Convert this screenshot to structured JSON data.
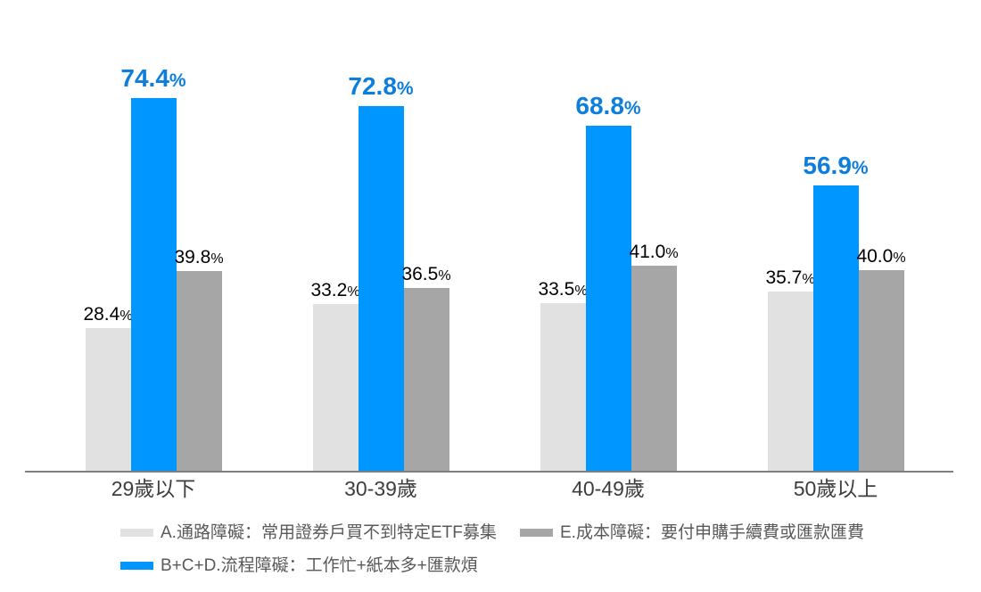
{
  "chart_data": {
    "type": "bar",
    "title": "",
    "xlabel": "",
    "ylabel": "",
    "value_suffix": "%",
    "value_decimals": 1,
    "ylim": [
      0,
      90
    ],
    "grid": false,
    "legend_position": "bottom",
    "categories": [
      "29歲以下",
      "30-39歲",
      "40-49歲",
      "50歲以上"
    ],
    "series": [
      {
        "name": "A.通路障礙：常用證券戶買不到特定ETF募集",
        "color": "#e1e1e1",
        "label_style": "black",
        "values": [
          28.4,
          33.2,
          33.5,
          35.7
        ]
      },
      {
        "name": "B+C+D.流程障礙：工作忙+紙本多+匯款煩",
        "color": "#0096ff",
        "label_style": "blue",
        "values": [
          74.4,
          72.8,
          68.8,
          56.9
        ]
      },
      {
        "name": "E.成本障礙：要付申購手續費或匯款匯費",
        "color": "#a6a6a6",
        "label_style": "black",
        "values": [
          39.8,
          36.5,
          41.0,
          40.0
        ]
      }
    ]
  },
  "colors": {
    "background": "#ffffff",
    "axis_line": "#7f7f7f",
    "bar_light_gray": "#e1e1e1",
    "bar_blue": "#0096ff",
    "bar_dark_gray": "#a6a6a6",
    "value_label_black": "#000000",
    "value_label_blue": "#0d7edb",
    "category_label": "#3d3d3d",
    "legend_text": "#595959"
  }
}
